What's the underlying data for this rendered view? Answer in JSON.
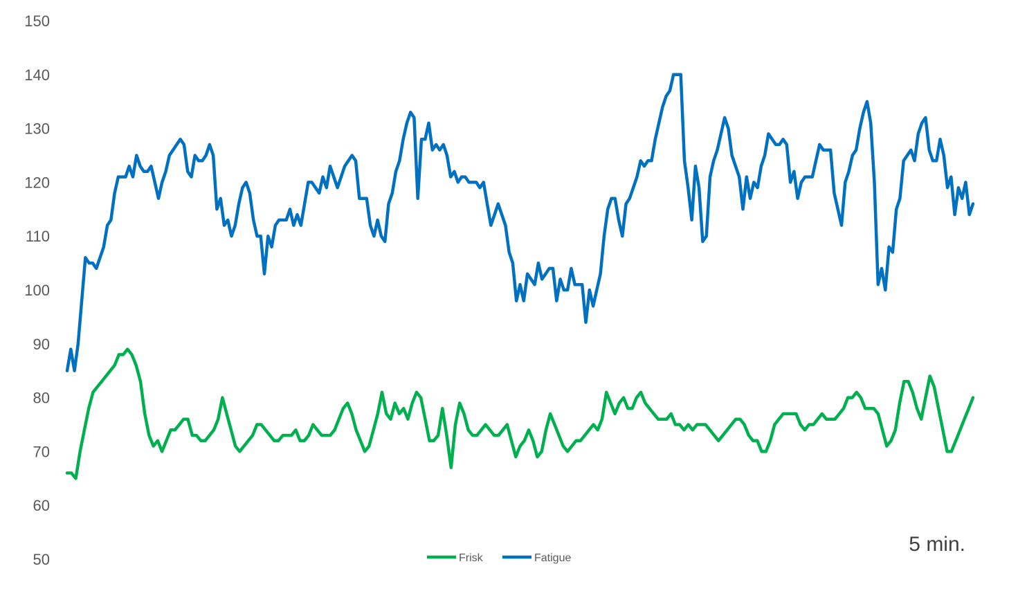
{
  "chart_data": {
    "type": "line",
    "title": "",
    "xlabel": "",
    "ylabel": "",
    "ylim": [
      50,
      150
    ],
    "yticks": [
      50,
      60,
      70,
      80,
      90,
      100,
      110,
      120,
      130,
      140,
      150
    ],
    "grid": false,
    "legend_position": "bottom",
    "annotation": "5 min.",
    "series": [
      {
        "name": "Frisk",
        "color": "#00b050",
        "values": [
          66,
          66,
          65,
          70,
          74,
          78,
          81,
          82,
          83,
          84,
          85,
          86,
          88,
          88,
          89,
          88,
          86,
          83,
          77,
          73,
          71,
          72,
          70,
          72,
          74,
          74,
          75,
          76,
          76,
          73,
          73,
          72,
          72,
          73,
          74,
          76,
          80,
          77,
          74,
          71,
          70,
          71,
          72,
          73,
          75,
          75,
          74,
          73,
          72,
          72,
          73,
          73,
          73,
          74,
          72,
          72,
          73,
          75,
          74,
          73,
          73,
          73,
          74,
          76,
          78,
          79,
          77,
          74,
          72,
          70,
          71,
          74,
          77,
          81,
          77,
          76,
          79,
          77,
          78,
          76,
          79,
          81,
          80,
          76,
          72,
          72,
          73,
          78,
          73,
          67,
          75,
          79,
          77,
          74,
          73,
          73,
          74,
          75,
          74,
          73,
          73,
          74,
          75,
          72,
          69,
          71,
          72,
          74,
          72,
          69,
          70,
          74,
          77,
          75,
          73,
          71,
          70,
          71,
          72,
          72,
          73,
          74,
          75,
          74,
          76,
          81,
          79,
          77,
          79,
          80,
          78,
          78,
          80,
          81,
          79,
          78,
          77,
          76,
          76,
          76,
          77,
          75,
          75,
          74,
          75,
          74,
          75,
          75,
          75,
          74,
          73,
          72,
          73,
          74,
          75,
          76,
          76,
          75,
          73,
          72,
          72,
          70,
          70,
          72,
          75,
          76,
          77,
          77,
          77,
          77,
          75,
          74,
          75,
          75,
          76,
          77,
          76,
          76,
          76,
          77,
          78,
          80,
          80,
          81,
          80,
          78,
          78,
          78,
          77,
          74,
          71,
          72,
          74,
          79,
          83,
          83,
          81,
          78,
          76,
          80,
          84,
          82,
          78,
          74,
          70,
          70,
          72,
          74,
          76,
          78,
          80
        ]
      },
      {
        "name": "Fatigue",
        "color": "#0070c0",
        "values": [
          85,
          89,
          85,
          90,
          98,
          106,
          105,
          105,
          104,
          106,
          108,
          112,
          113,
          118,
          121,
          121,
          121,
          123,
          121,
          125,
          123,
          122,
          122,
          123,
          120,
          117,
          120,
          122,
          125,
          126,
          127,
          128,
          127,
          122,
          121,
          125,
          124,
          124,
          125,
          127,
          125,
          115,
          117,
          112,
          113,
          110,
          112,
          116,
          119,
          120,
          118,
          113,
          110,
          110,
          103,
          110,
          108,
          112,
          113,
          113,
          113,
          115,
          112,
          114,
          112,
          116,
          120,
          120,
          119,
          118,
          121,
          119,
          123,
          121,
          119,
          121,
          123,
          124,
          125,
          124,
          117,
          117,
          117,
          112,
          110,
          113,
          110,
          109,
          116,
          118,
          122,
          124,
          128,
          131,
          133,
          132,
          117,
          128,
          128,
          131,
          126,
          127,
          126,
          127,
          125,
          121,
          122,
          120,
          121,
          121,
          120,
          120,
          120,
          119,
          120,
          116,
          112,
          114,
          116,
          114,
          112,
          107,
          105,
          98,
          101,
          98,
          103,
          102,
          101,
          105,
          102,
          103,
          104,
          104,
          98,
          102,
          100,
          100,
          104,
          101,
          101,
          101,
          94,
          100,
          97,
          100,
          103,
          110,
          115,
          117,
          117,
          113,
          110,
          116,
          117,
          119,
          121,
          124,
          123,
          124,
          124,
          128,
          131,
          134,
          136,
          137,
          140,
          140,
          140,
          124,
          119,
          113,
          123,
          119,
          109,
          110,
          121,
          124,
          126,
          129,
          132,
          130,
          125,
          123,
          121,
          115,
          121,
          117,
          120,
          119,
          123,
          125,
          129,
          128,
          127,
          127,
          128,
          127,
          120,
          122,
          117,
          120,
          121,
          121,
          121,
          124,
          127,
          126,
          126,
          126,
          118,
          115,
          112,
          120,
          122,
          125,
          126,
          130,
          133,
          135,
          131,
          120,
          101,
          104,
          100,
          108,
          107,
          115,
          117,
          124,
          125,
          126,
          124,
          129,
          131,
          132,
          126,
          124,
          124,
          128,
          125,
          119,
          121,
          114,
          119,
          117,
          120,
          114,
          116
        ]
      }
    ]
  }
}
